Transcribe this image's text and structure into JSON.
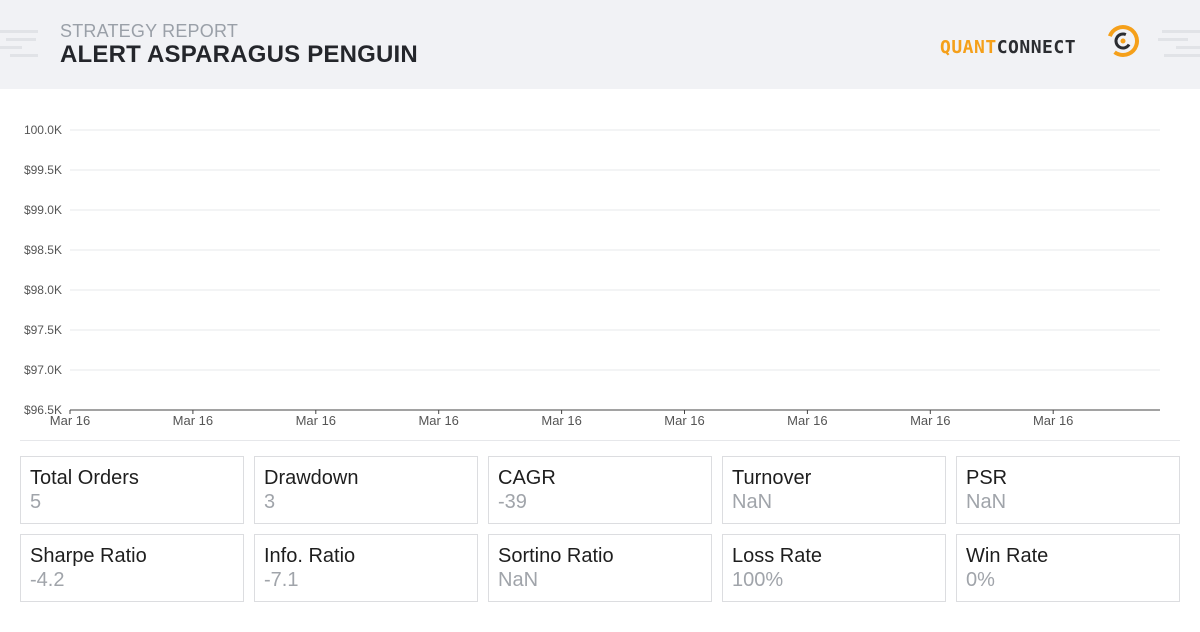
{
  "header": {
    "label": "STRATEGY REPORT",
    "title": "ALERT ASPARAGUS PENGUIN",
    "logo_part1": "QUANT",
    "logo_part2": "CONNECT",
    "colors": {
      "background": "#f1f2f5",
      "accent": "#f5a01a",
      "dark": "#2b2d31"
    },
    "icons": [
      "decorative-lines-icon",
      "quantconnect-logo-icon"
    ]
  },
  "chart_data": {
    "type": "line",
    "title": "",
    "xlabel": "",
    "ylabel": "",
    "x_tick_labels": [
      "Mar 16",
      "Mar 16",
      "Mar 16",
      "Mar 16",
      "Mar 16",
      "Mar 16",
      "Mar 16",
      "Mar 16",
      "Mar 16"
    ],
    "y_tick_labels": [
      "100.0K",
      "$99.5K",
      "$99.0K",
      "$98.5K",
      "$98.0K",
      "$97.5K",
      "$97.0K",
      "$96.5K"
    ],
    "y_ticks": [
      100000,
      99500,
      99000,
      98500,
      98000,
      97500,
      97000,
      96500
    ],
    "ylim": [
      96500,
      100000
    ],
    "grid": true,
    "series": []
  },
  "stats": [
    {
      "label": "Total Orders",
      "value": "5"
    },
    {
      "label": "Drawdown",
      "value": "3"
    },
    {
      "label": "CAGR",
      "value": "-39"
    },
    {
      "label": "Turnover",
      "value": "NaN"
    },
    {
      "label": "PSR",
      "value": "NaN"
    },
    {
      "label": "Sharpe Ratio",
      "value": "-4.2"
    },
    {
      "label": "Info. Ratio",
      "value": "-7.1"
    },
    {
      "label": "Sortino Ratio",
      "value": "NaN"
    },
    {
      "label": "Loss Rate",
      "value": "100%"
    },
    {
      "label": "Win Rate",
      "value": "0%"
    }
  ]
}
